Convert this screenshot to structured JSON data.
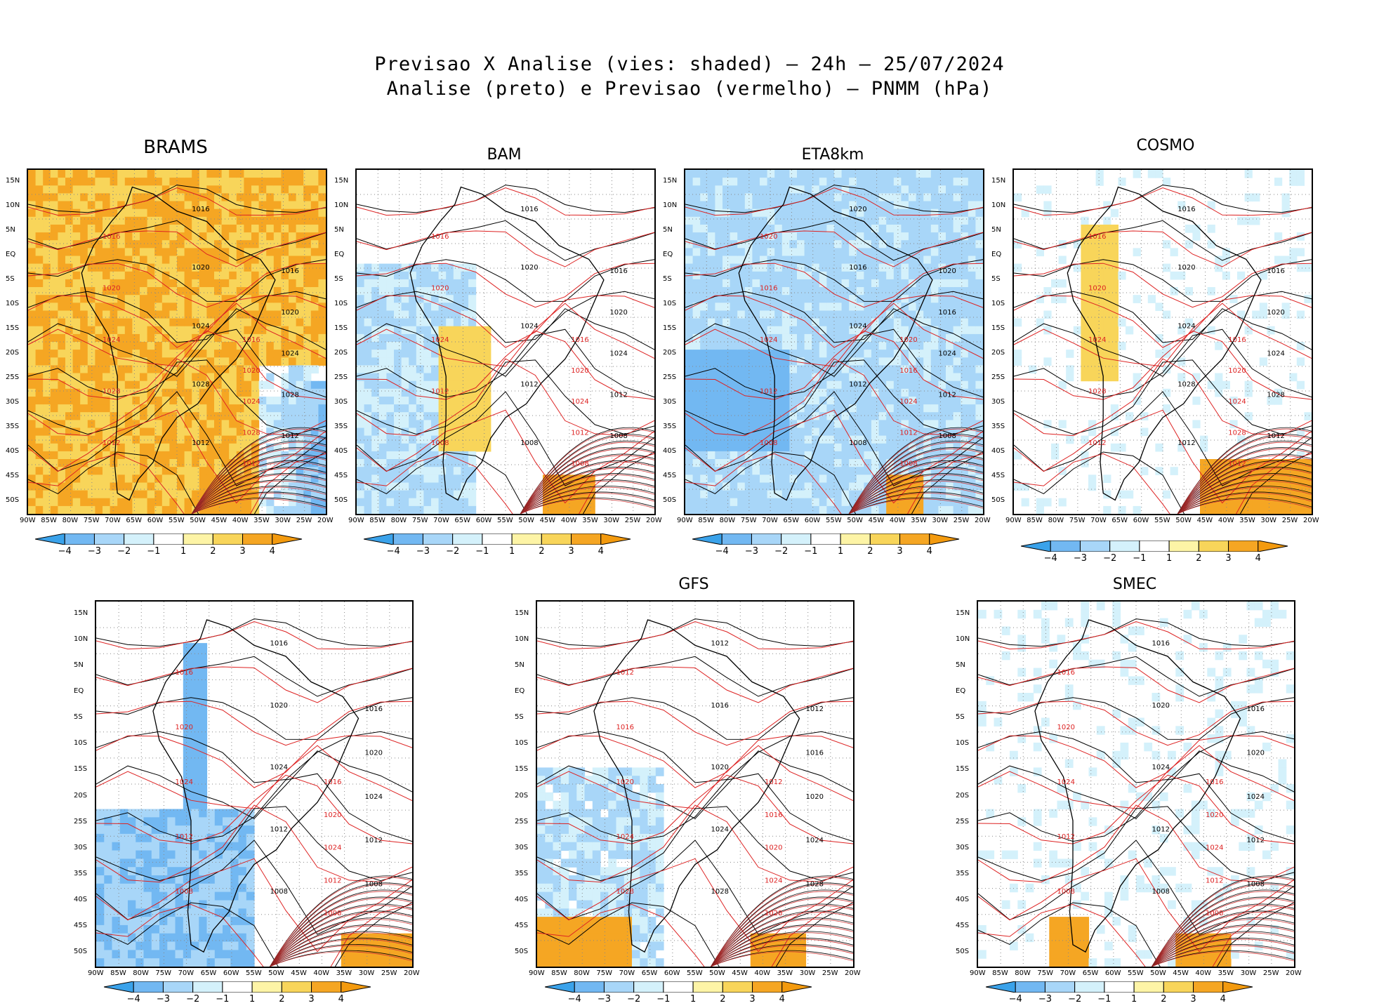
{
  "figure": {
    "title_line1": "Previsao X Analise (vies: shaded) – 24h – 25/07/2024",
    "title_line2": "Analise (preto) e Previsao (vermelho) – PNMM (hPa)"
  },
  "axes": {
    "lat_labels": [
      "15N",
      "10N",
      "5N",
      "EQ",
      "5S",
      "10S",
      "15S",
      "20S",
      "25S",
      "30S",
      "35S",
      "40S",
      "45S",
      "50S"
    ],
    "lon_labels": [
      "90W",
      "85W",
      "80W",
      "75W",
      "70W",
      "65W",
      "60W",
      "55W",
      "50W",
      "45W",
      "40W",
      "35W",
      "30W",
      "25W",
      "20W"
    ]
  },
  "colorbar": {
    "labels": [
      "−4",
      "−3",
      "−2",
      "−1",
      "1",
      "2",
      "3",
      "4"
    ],
    "colors": [
      "#3aa2ea",
      "#72b8f2",
      "#a8d6f8",
      "#d4f1fb",
      "#ffffff",
      "#fdf4a6",
      "#f8d55a",
      "#f5a623",
      "#f39a0e"
    ]
  },
  "chart_data": [
    {
      "type": "heatmap",
      "model": "BRAMS",
      "title": "BRAMS",
      "bias": "mostly positive (+2 to +4 hPa)",
      "isobar_labels": [
        "1016",
        "1020",
        "1024",
        "1028",
        "1012"
      ]
    },
    {
      "type": "heatmap",
      "model": "BAM",
      "title": "BAM",
      "bias": "mixed, weak negative over Pacific",
      "isobar_labels": [
        "1016",
        "1020",
        "1024",
        "1012",
        "1008"
      ]
    },
    {
      "type": "heatmap",
      "model": "ETA8km",
      "title": "ETA8km",
      "bias": "negative (-1 to -3 hPa) over continent",
      "isobar_labels": [
        "1020",
        "1016",
        "1024",
        "1012",
        "1008"
      ]
    },
    {
      "type": "heatmap",
      "model": "COSMO",
      "title": "COSMO",
      "bias": "weak negative, positive along Andes",
      "isobar_labels": [
        "1016",
        "1020",
        "1024",
        "1028",
        "1012"
      ]
    },
    {
      "type": "heatmap",
      "model": "",
      "title": "",
      "bias": "negative southwest Pacific",
      "isobar_labels": [
        "1016",
        "1020",
        "1024",
        "1012",
        "1008"
      ]
    },
    {
      "type": "heatmap",
      "model": "GFS",
      "title": "GFS",
      "bias": "weak negative, positive south Atlantic",
      "isobar_labels": [
        "1012",
        "1016",
        "1020",
        "1024",
        "1028"
      ]
    },
    {
      "type": "heatmap",
      "model": "SMEC",
      "title": "SMEC",
      "bias": "weak mixed",
      "isobar_labels": [
        "1016",
        "1020",
        "1024",
        "1012",
        "1008"
      ]
    }
  ]
}
